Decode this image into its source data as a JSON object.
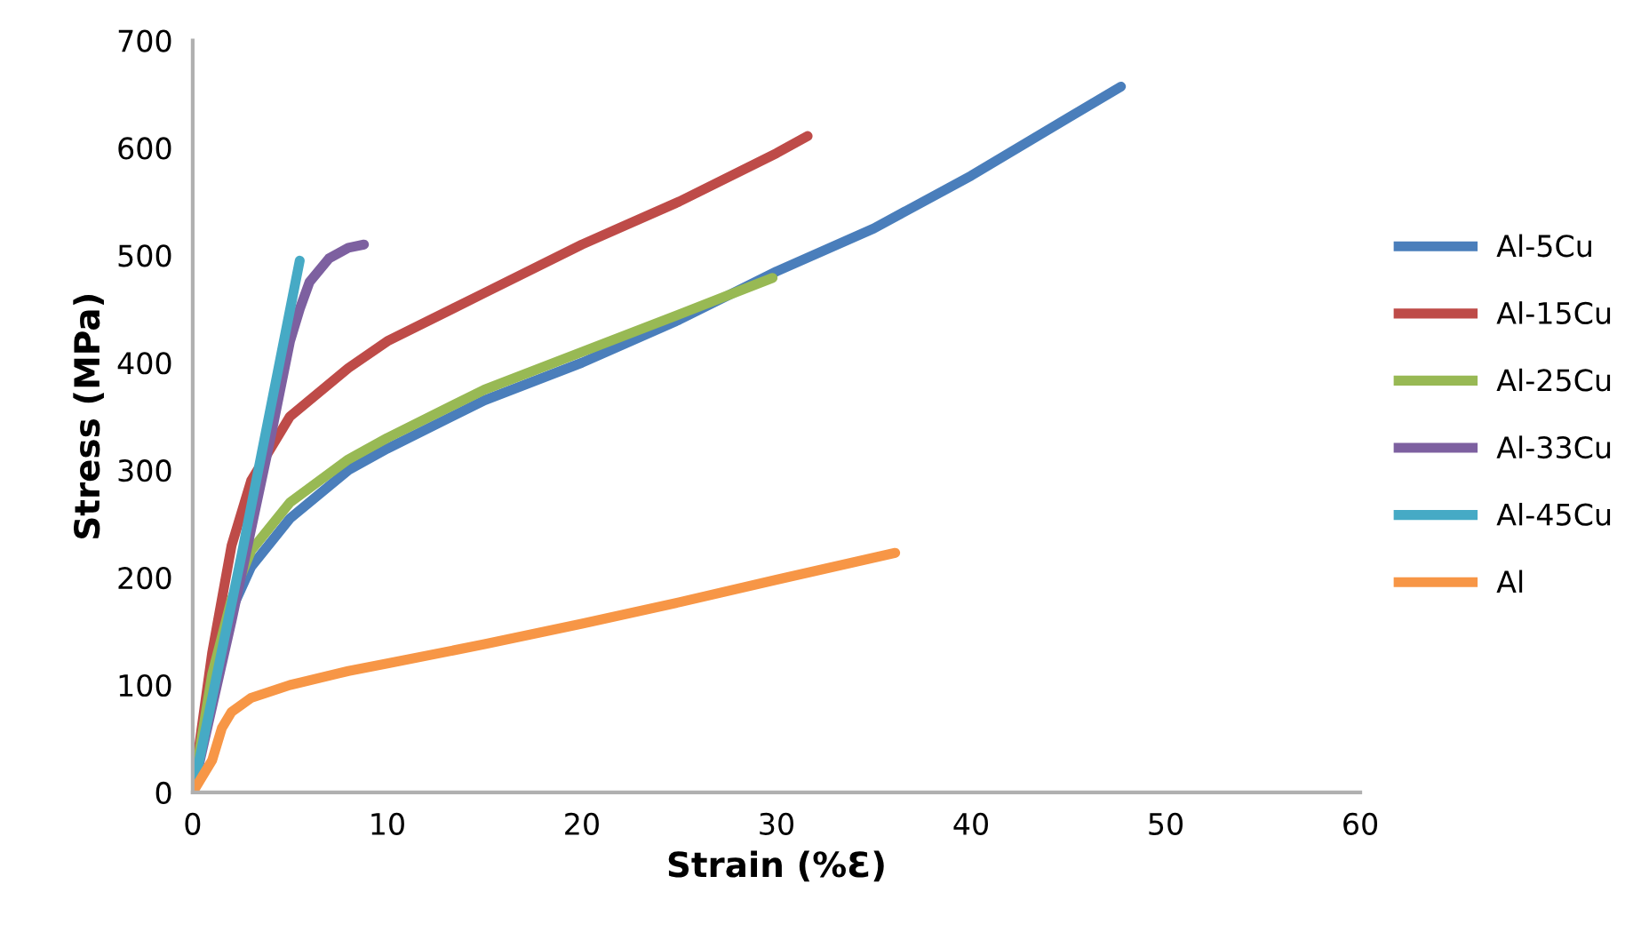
{
  "chart_data": {
    "type": "line",
    "xlabel": "Strain (%Ɛ)",
    "ylabel": "Stress (MPa)",
    "xlim": [
      0,
      60
    ],
    "xticks": [
      0,
      10,
      20,
      30,
      40,
      50,
      60
    ],
    "ylim": [
      0,
      700
    ],
    "yticks": [
      0,
      100,
      200,
      300,
      400,
      500,
      600,
      700
    ],
    "grid": false,
    "legend": "right",
    "marker": "none",
    "line_style": "solid",
    "series": [
      {
        "name": "Al-5Cu",
        "color": "#4a7ebb",
        "x": [
          0,
          1,
          2,
          3,
          5,
          8,
          10,
          15,
          20,
          25,
          30,
          35,
          40,
          45,
          47.7
        ],
        "values": [
          0,
          100,
          170,
          210,
          255,
          300,
          320,
          365,
          400,
          440,
          485,
          525,
          574,
          628,
          657
        ]
      },
      {
        "name": "Al-15Cu",
        "color": "#be4b48",
        "x": [
          0,
          1,
          2,
          3,
          5,
          8,
          10,
          15,
          20,
          25,
          30,
          31.6
        ],
        "values": [
          0,
          130,
          230,
          290,
          350,
          395,
          420,
          465,
          510,
          550,
          595,
          611
        ]
      },
      {
        "name": "Al-25Cu",
        "color": "#98b954",
        "x": [
          0,
          1,
          2,
          3,
          5,
          8,
          10,
          15,
          20,
          25,
          29.8
        ],
        "values": [
          0,
          110,
          180,
          225,
          270,
          310,
          330,
          375,
          410,
          445,
          479
        ]
      },
      {
        "name": "Al-33Cu",
        "color": "#7d60a0",
        "x": [
          0,
          2,
          4,
          5,
          5.5,
          6,
          7,
          8,
          8.8
        ],
        "values": [
          0,
          160,
          330,
          420,
          450,
          475,
          497,
          507,
          510
        ]
      },
      {
        "name": "Al-45Cu",
        "color": "#46aac5",
        "x": [
          0,
          2.5,
          5.5
        ],
        "values": [
          0,
          220,
          495
        ]
      },
      {
        "name": "Al",
        "color": "#f79646",
        "x": [
          0,
          1,
          1.5,
          2,
          3,
          5,
          8,
          10,
          15,
          20,
          25,
          30,
          36.1
        ],
        "values": [
          0,
          30,
          60,
          75,
          88,
          100,
          113,
          120,
          138,
          157,
          177,
          198,
          223
        ]
      }
    ]
  }
}
